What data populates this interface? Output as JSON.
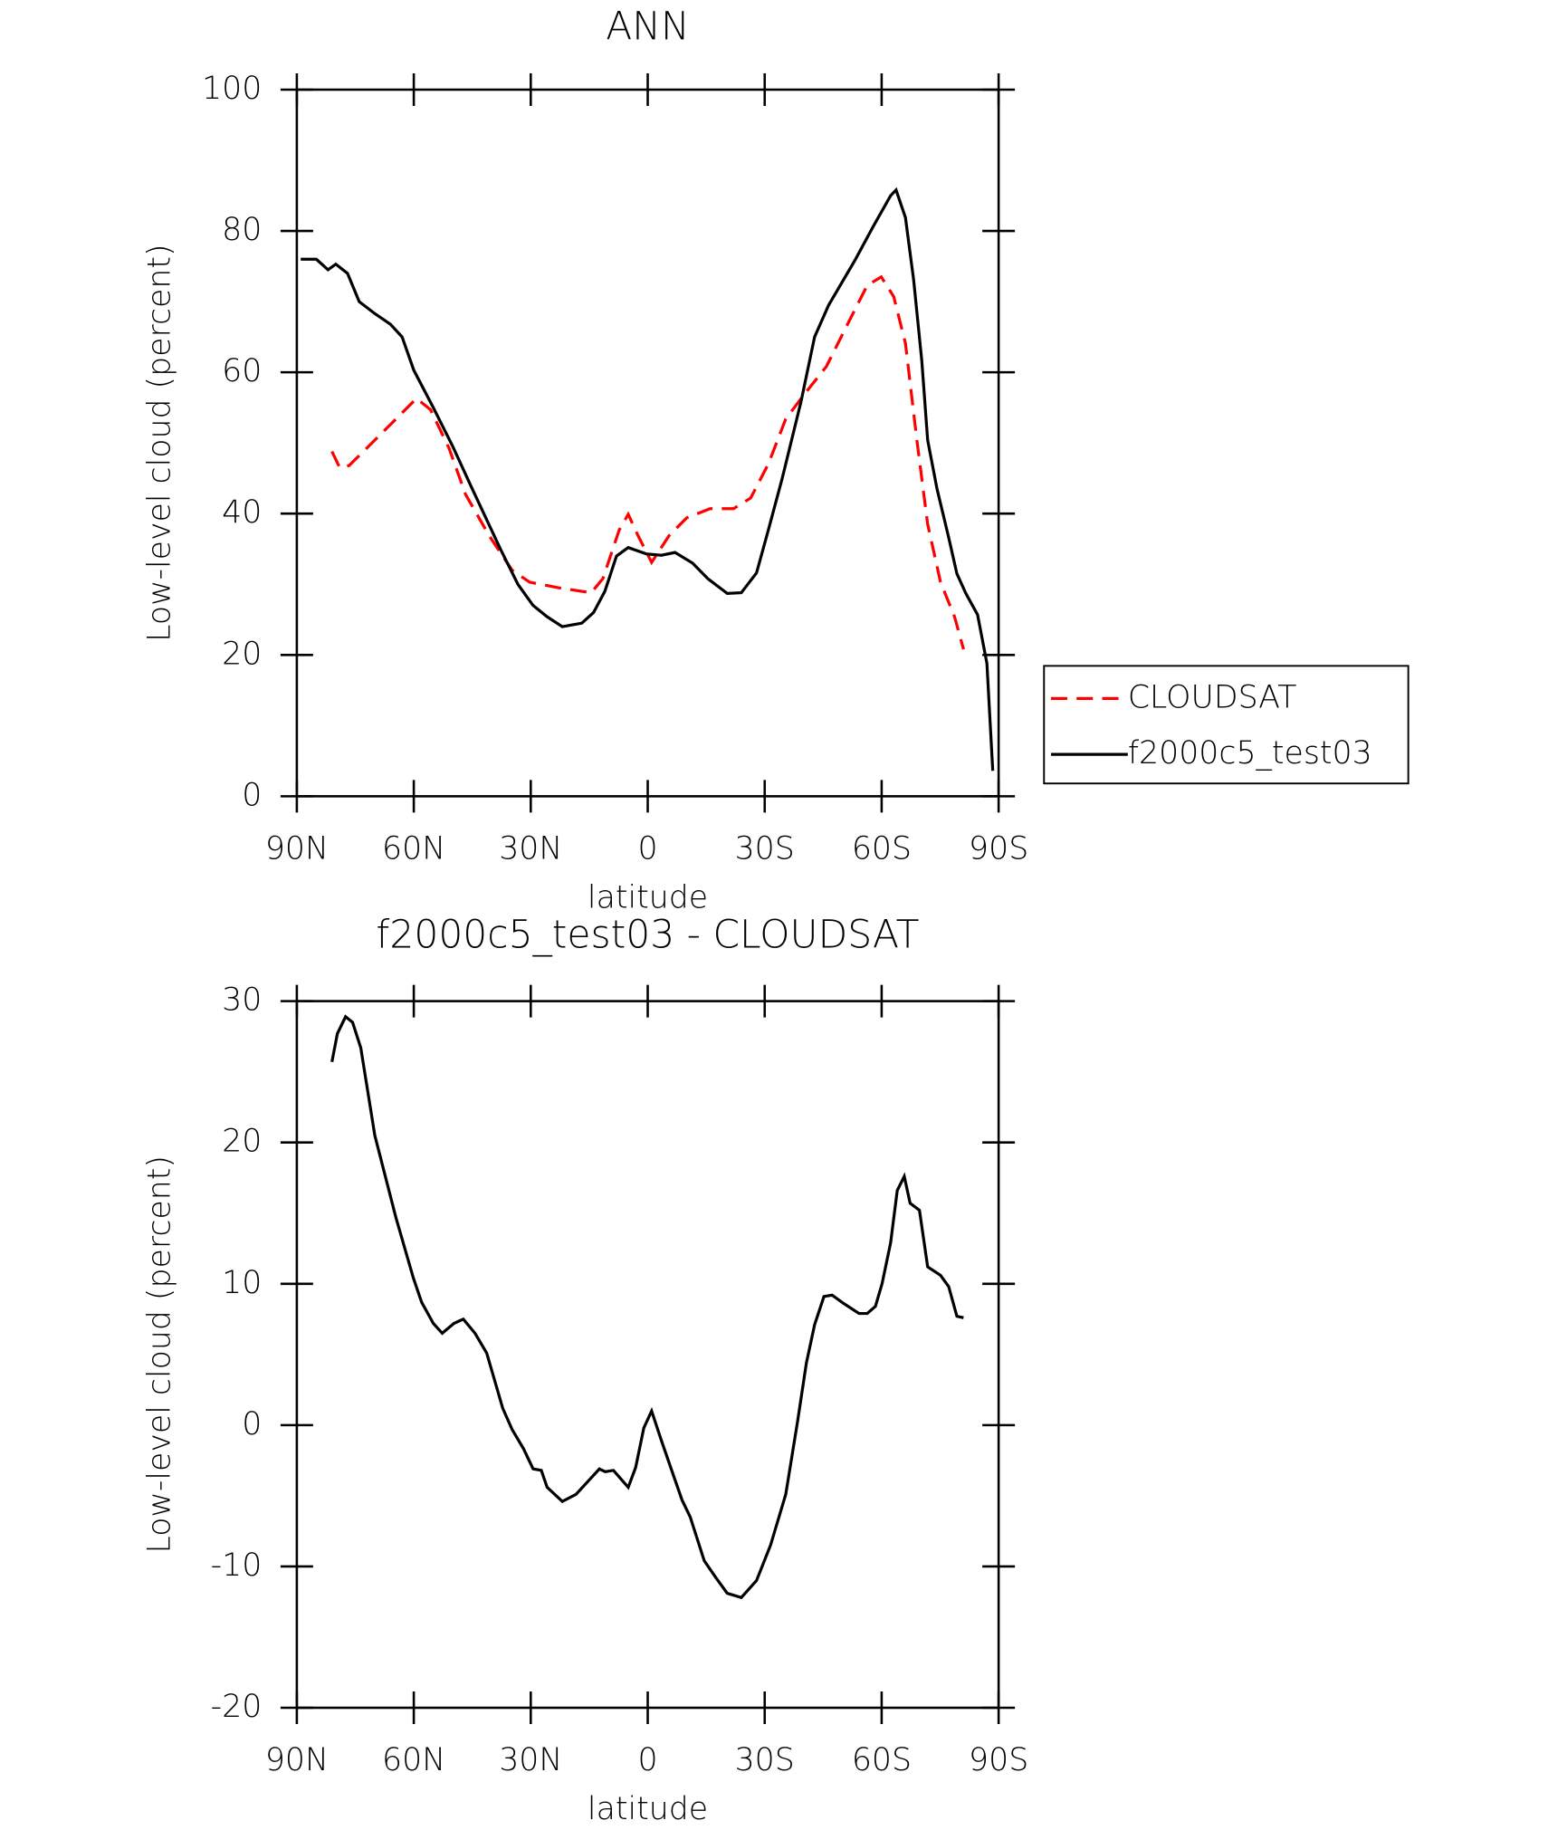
{
  "chart_data": [
    {
      "type": "line",
      "title": "ANN",
      "x_label": "latitude",
      "y_label": "Low-level cloud (percent)",
      "xlim": [
        90,
        -90
      ],
      "xticks": [
        {
          "value": 90,
          "label": "90N"
        },
        {
          "value": 60,
          "label": "60N"
        },
        {
          "value": 30,
          "label": "30N"
        },
        0,
        {
          "value": -30,
          "label": "30S"
        },
        {
          "value": -60,
          "label": "60S"
        },
        {
          "value": -90,
          "label": "90S"
        }
      ],
      "ylim": [
        0,
        100
      ],
      "yticks": [
        0,
        20,
        40,
        60,
        80,
        100
      ],
      "legend": "right",
      "series": [
        {
          "name": "CLOUDSAT",
          "color": "#ff0000",
          "dashed": true,
          "x": [
            81,
            79,
            76.6,
            72,
            66,
            59.3,
            55.7,
            51,
            46.7,
            40.7,
            34.8,
            30.3,
            22.8,
            14.5,
            11.5,
            7.3,
            5,
            2.5,
            -1,
            -5.5,
            -10,
            -16,
            -22,
            -26.4,
            -31,
            -35.4,
            -39.9,
            -45.8,
            -51.8,
            -56.3,
            -59.9,
            -63.1,
            -66.1,
            -69.1,
            -71.8,
            -75.1,
            -78.7,
            -81
          ],
          "values": [
            48.8,
            46.5,
            46.8,
            49.3,
            52.6,
            56.3,
            54.7,
            49.3,
            42.7,
            36.9,
            32,
            30.3,
            29.5,
            28.8,
            30.8,
            37.7,
            39.9,
            36.9,
            33.1,
            36.9,
            39.4,
            40.7,
            40.7,
            42.2,
            47.1,
            53.4,
            56.7,
            60.8,
            67.4,
            72.3,
            73.5,
            70.7,
            64.1,
            50.1,
            38.5,
            30.3,
            25.4,
            20.8
          ]
        },
        {
          "name": "f2000c5_test03",
          "color": "#000000",
          "dashed": false,
          "x": [
            89,
            85,
            82,
            80,
            77,
            74,
            70,
            66,
            63,
            60,
            55,
            50,
            45,
            37.8,
            33.3,
            29.4,
            25.8,
            21.9,
            16.9,
            13.9,
            11,
            8,
            5,
            0.4,
            -3.5,
            -7,
            -11.5,
            -15.4,
            -20.4,
            -24,
            -27.9,
            -30.9,
            -34.5,
            -39.3,
            -42.8,
            -46.4,
            -53.3,
            -57.8,
            -62.3,
            -63.7,
            -66.1,
            -68.2,
            -70.3,
            -71.8,
            -74.2,
            -77.2,
            -79.3,
            -81.6,
            -84.6,
            -87,
            -88.5
          ],
          "values": [
            76,
            76,
            74.5,
            75.3,
            74,
            70,
            68.3,
            66.8,
            65,
            60.3,
            55,
            49.5,
            43.5,
            35,
            30,
            27,
            25.4,
            24,
            24.5,
            26,
            29,
            34,
            35.2,
            34.3,
            34.1,
            34.5,
            33,
            30.8,
            28.7,
            28.8,
            31.6,
            37.6,
            45,
            55.8,
            65,
            69.5,
            76,
            80.6,
            85,
            85.8,
            81.9,
            73.1,
            61.6,
            50.4,
            43.5,
            36.6,
            31.5,
            28.7,
            25.7,
            18.8,
            3.6
          ]
        }
      ]
    },
    {
      "type": "line",
      "title": "f2000c5_test03 - CLOUDSAT",
      "x_label": "latitude",
      "y_label": "Low-level cloud (percent)",
      "xlim": [
        90,
        -90
      ],
      "xticks": [
        {
          "value": 90,
          "label": "90N"
        },
        {
          "value": 60,
          "label": "60N"
        },
        {
          "value": 30,
          "label": "30N"
        },
        0,
        {
          "value": -30,
          "label": "30S"
        },
        {
          "value": -60,
          "label": "60S"
        },
        {
          "value": -90,
          "label": "90S"
        }
      ],
      "ylim": [
        -20,
        30
      ],
      "yticks": [
        -20,
        -10,
        0,
        10,
        20,
        30
      ],
      "series": [
        {
          "color": "#000000",
          "dashed": false,
          "x": [
            81,
            79.6,
            77.5,
            75.7,
            73.6,
            70,
            64.6,
            60.1,
            58,
            55,
            52.7,
            49.7,
            47.3,
            44.3,
            41.3,
            39.3,
            37.2,
            34.8,
            31.8,
            29.4,
            27.3,
            25.8,
            21.9,
            18.4,
            15.4,
            12.4,
            10.9,
            8.8,
            5,
            3.1,
            1,
            -1,
            -3.4,
            -6.4,
            -8.8,
            -10.9,
            -14.5,
            -17.5,
            -20.4,
            -24,
            -27.9,
            -31.5,
            -35.4,
            -38.4,
            -40.7,
            -42.8,
            -45.2,
            -47.3,
            -50.3,
            -54.2,
            -56.3,
            -58.4,
            -60.1,
            -62.3,
            -64,
            -65.8,
            -67.3,
            -69.7,
            -71.8,
            -75.1,
            -77.2,
            -79.3,
            -81
          ],
          "values": [
            25.7,
            27.7,
            28.9,
            28.5,
            26.7,
            20.5,
            14.7,
            10.4,
            8.7,
            7.2,
            6.5,
            7.2,
            7.5,
            6.5,
            5.1,
            3.2,
            1.2,
            -0.3,
            -1.7,
            -3.1,
            -3.2,
            -4.4,
            -5.4,
            -4.9,
            -4,
            -3.1,
            -3.3,
            -3.2,
            -4.4,
            -3,
            -0.2,
            1,
            -1,
            -3.4,
            -5.3,
            -6.5,
            -9.6,
            -10.8,
            -11.9,
            -12.2,
            -11,
            -8.5,
            -4.9,
            0.2,
            4.4,
            7.1,
            9.1,
            9.2,
            8.6,
            7.9,
            7.9,
            8.4,
            10,
            12.9,
            16.6,
            17.6,
            15.7,
            15.2,
            11.2,
            10.6,
            9.8,
            7.7,
            7.6
          ]
        }
      ]
    }
  ]
}
